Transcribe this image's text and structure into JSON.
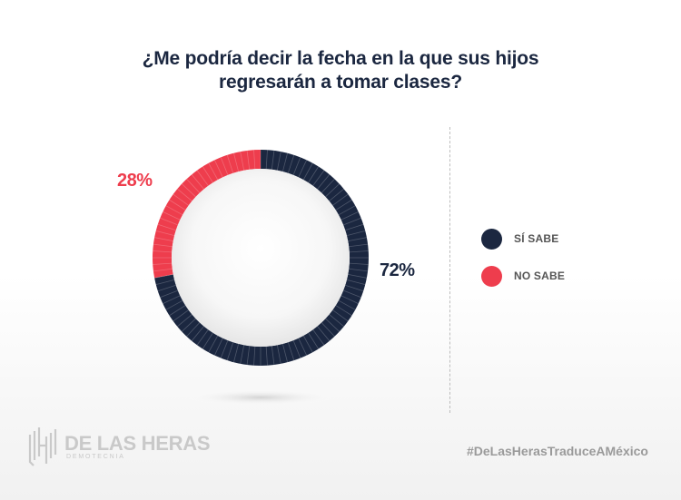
{
  "chart_data": {
    "type": "pie",
    "title": "¿Me podría decir la fecha en la que sus hijos regresarán a tomar clases?",
    "categories": [
      "SÍ SABE",
      "NO SABE"
    ],
    "values": [
      72,
      28
    ],
    "value_labels": [
      "72%",
      "28%"
    ],
    "colors": [
      "#1b2740",
      "#ee3d4d"
    ],
    "legend_position": "right",
    "style": "donut"
  },
  "title_lines": [
    "¿Me podría decir la fecha en la que sus hijos",
    "regresarán a tomar clases?"
  ],
  "legend": [
    {
      "label": "SÍ SABE",
      "color": "#1b2740"
    },
    {
      "label": "NO SABE",
      "color": "#ee3d4d"
    }
  ],
  "brand": {
    "name": "DE LAS HERAS",
    "sub": "DEMOTECNIA",
    "hashtag": "#DeLasHerasTraduceAMéxico"
  }
}
